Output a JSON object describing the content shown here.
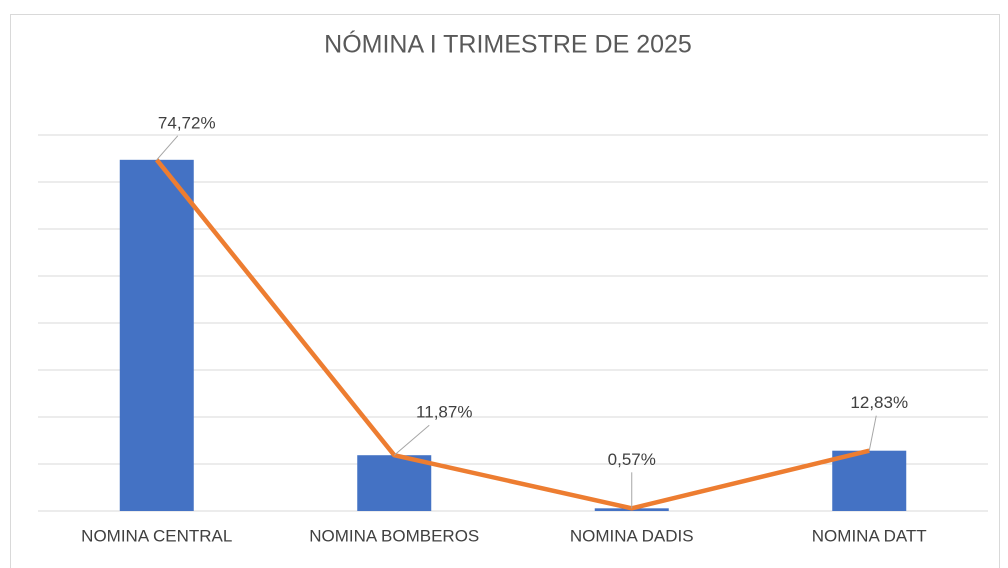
{
  "chart_data": {
    "type": "bar",
    "title": "NÓMINA I TRIMESTRE DE 2025",
    "categories": [
      "NOMINA CENTRAL",
      "NOMINA BOMBEROS",
      "NOMINA DADIS",
      "NOMINA  DATT"
    ],
    "values": [
      74.72,
      11.87,
      0.57,
      12.83
    ],
    "value_labels": [
      "74,72%",
      "11,87%",
      "0,57%",
      "12,83%"
    ],
    "color": "#4472c4",
    "line_color": "#ed7d31",
    "overlay_line": true,
    "ylim": [
      0,
      80
    ],
    "yticks": [
      0,
      10,
      20,
      30,
      40,
      50,
      60,
      70,
      80
    ],
    "grid": true
  }
}
